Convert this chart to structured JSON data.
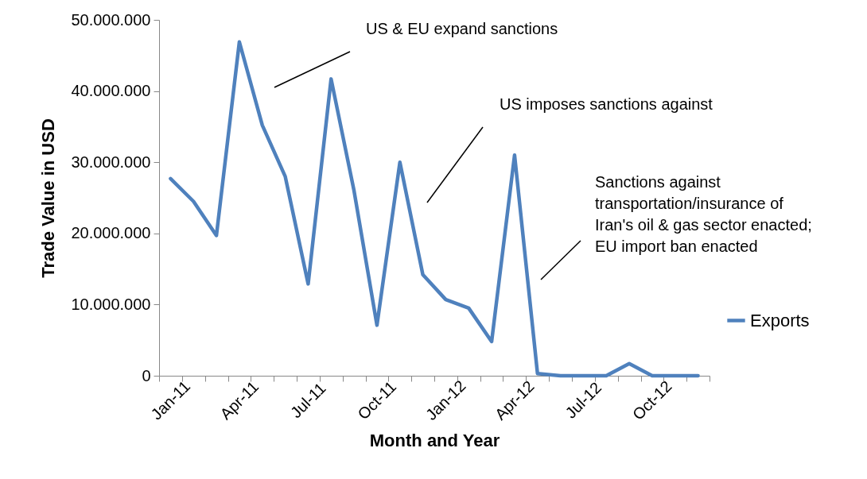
{
  "chart_data": {
    "type": "line",
    "xlabel": "Month and Year",
    "ylabel": "Trade Value in USD",
    "categories": [
      "Jan-11",
      null,
      null,
      "Apr-11",
      null,
      null,
      "Jul-11",
      null,
      null,
      "Oct-11",
      null,
      null,
      "Jan-12",
      null,
      null,
      "Apr-12",
      null,
      null,
      "Jul-12",
      null,
      null,
      "Oct-12",
      null,
      null
    ],
    "series": [
      {
        "name": "Exports",
        "color": "#4f81bd",
        "values": [
          27700000,
          24500000,
          19700000,
          46900000,
          35200000,
          28000000,
          12900000,
          41700000,
          26000000,
          7100000,
          30000000,
          14200000,
          10700000,
          9500000,
          4800000,
          31000000,
          300000,
          0,
          0,
          0,
          1700000,
          0,
          0,
          0
        ]
      }
    ],
    "ylim": [
      0,
      50000000
    ],
    "yticks": [
      0,
      {
        "value": 10000000,
        "label": "10.000.000"
      },
      {
        "value": 20000000,
        "label": "20.000.000"
      },
      {
        "value": 30000000,
        "label": "30.000.000"
      },
      {
        "value": 40000000,
        "label": "40.000.000"
      },
      {
        "value": 50000000,
        "label": "50.000.000"
      }
    ],
    "annotations": [
      "US & EU expand sanctions",
      "US imposes sanctions against",
      "Sanctions against\ntransportation/insurance of\nIran's oil & gas sector enacted;\nEU import ban enacted"
    ],
    "legend": "right",
    "grid": false,
    "marker": "none",
    "line_style": "solid"
  }
}
